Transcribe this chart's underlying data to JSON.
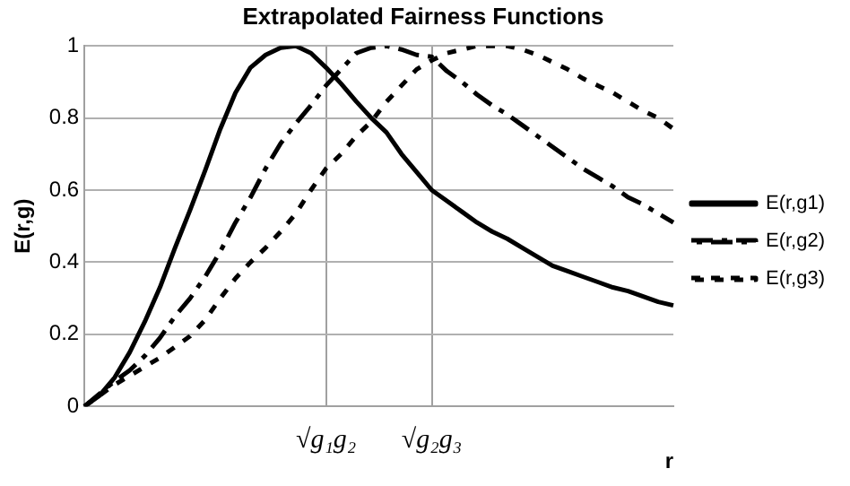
{
  "chart_data": {
    "type": "line",
    "title": "Extrapolated Fairness Functions",
    "xlabel": "r",
    "ylabel": "E(r,g)",
    "categories": [
      null,
      null,
      null,
      null,
      null,
      null,
      null,
      null,
      null,
      null,
      null,
      null,
      null,
      null,
      null,
      null,
      "√g₁g₂",
      null,
      null,
      null,
      null,
      null,
      null,
      "√g₂g₃",
      null,
      null,
      null,
      null,
      null,
      null,
      null,
      null,
      null,
      null,
      null,
      null,
      null,
      null,
      null,
      null
    ],
    "ylim": [
      0,
      1
    ],
    "yticks": [
      0,
      0.2,
      0.4,
      0.6,
      0.8,
      1
    ],
    "grid": true,
    "legend": "right",
    "marker": "none",
    "series": [
      {
        "name": "E(r,g1)",
        "color": "#000000",
        "line_style": "solid",
        "values": [
          0,
          0.03,
          0.08,
          0.15,
          0.235,
          0.33,
          0.44,
          0.545,
          0.655,
          0.77,
          0.87,
          0.94,
          0.975,
          0.995,
          1.0,
          0.98,
          0.94,
          0.895,
          0.846,
          0.8,
          0.76,
          0.7,
          0.65,
          0.6,
          0.57,
          0.54,
          0.51,
          0.485,
          0.465,
          0.44,
          0.415,
          0.39,
          0.375,
          0.36,
          0.345,
          0.33,
          0.32,
          0.305,
          0.29,
          0.28
        ]
      },
      {
        "name": "E(r,g2)",
        "color": "#000000",
        "line_style": "dashed",
        "values": [
          0,
          0.035,
          0.07,
          0.1,
          0.14,
          0.19,
          0.25,
          0.3,
          0.36,
          0.43,
          0.51,
          0.58,
          0.66,
          0.73,
          0.785,
          0.835,
          0.89,
          0.935,
          0.98,
          0.995,
          1.0,
          0.99,
          0.975,
          0.97,
          0.93,
          0.9,
          0.865,
          0.835,
          0.81,
          0.78,
          0.75,
          0.72,
          0.69,
          0.66,
          0.635,
          0.61,
          0.58,
          0.56,
          0.535,
          0.51
        ]
      },
      {
        "name": "E(r,g3)",
        "color": "#000000",
        "line_style": "dotted",
        "values": [
          0,
          0.03,
          0.06,
          0.085,
          0.11,
          0.135,
          0.165,
          0.195,
          0.24,
          0.3,
          0.355,
          0.4,
          0.44,
          0.485,
          0.535,
          0.6,
          0.66,
          0.7,
          0.75,
          0.79,
          0.845,
          0.89,
          0.935,
          0.96,
          0.98,
          0.99,
          1.0,
          1.0,
          1.0,
          0.99,
          0.975,
          0.955,
          0.935,
          0.91,
          0.89,
          0.87,
          0.845,
          0.82,
          0.8,
          0.77
        ]
      }
    ]
  }
}
